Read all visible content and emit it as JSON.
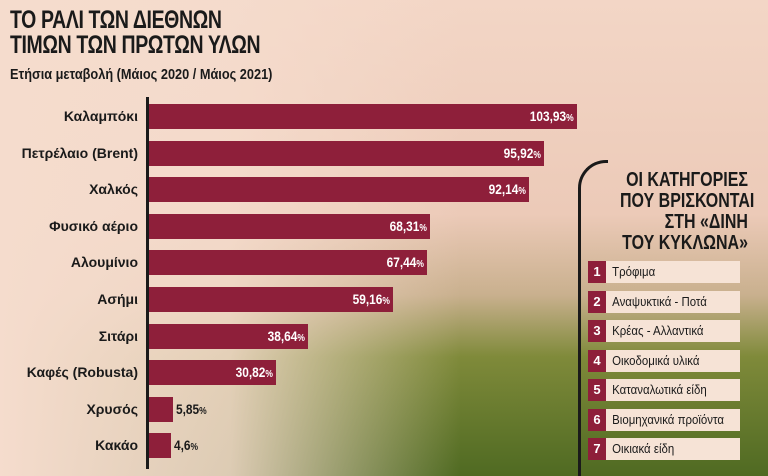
{
  "chart_data": {
    "type": "bar",
    "orientation": "horizontal",
    "title": "ΤΟ ΡΑΛΙ ΤΩΝ ΔΙΕΘΝΩΝ ΤΙΜΩΝ ΤΩΝ ΠΡΩΤΩΝ ΥΛΩΝ",
    "title_lines": [
      "ΤΟ ΡΑΛΙ ΤΩΝ ΔΙΕΘΝΩΝ",
      "ΤΙΜΩΝ ΤΩΝ ΠΡΩΤΩΝ ΥΛΩΝ"
    ],
    "subtitle": "Ετήσια μεταβολή (Μάιος 2020 / Μάιος 2021)",
    "categories": [
      "Καλαμπόκι",
      "Πετρέλαιο (Brent)",
      "Χαλκός",
      "Φυσικό αέριο",
      "Αλουμίνιο",
      "Ασήμι",
      "Σιτάρι",
      "Καφές (Robusta)",
      "Χρυσός",
      "Κακάο"
    ],
    "values": [
      103.93,
      95.92,
      92.14,
      68.31,
      67.44,
      59.16,
      38.64,
      30.82,
      5.85,
      4.6
    ],
    "value_labels": [
      "103,93",
      "95,92",
      "92,14",
      "68,31",
      "67,44",
      "59,16",
      "38,64",
      "30,82",
      "5,85",
      "4,6"
    ],
    "unit": "%",
    "bar_color": "#8e1f3a",
    "grid": false
  },
  "panel": {
    "title_lines": [
      "ΟΙ ΚΑΤΗΓΟΡΙΕΣ",
      "ΠΟΥ ΒΡΙΣΚΟΝΤΑΙ",
      "ΣΤΗ «ΔΙΝΗ",
      "ΤΟΥ ΚΥΚΛΩΝΑ»"
    ],
    "items": [
      {
        "n": "1",
        "label": "Τρόφιμα"
      },
      {
        "n": "2",
        "label": "Αναψυκτικά - Ποτά"
      },
      {
        "n": "3",
        "label": "Κρέας - Αλλαντικά"
      },
      {
        "n": "4",
        "label": "Οικοδομικά υλικά"
      },
      {
        "n": "5",
        "label": "Καταναλωτικά είδη"
      },
      {
        "n": "6",
        "label": "Βιομηχανικά προϊόντα"
      },
      {
        "n": "7",
        "label": "Οικιακά είδη"
      }
    ]
  }
}
